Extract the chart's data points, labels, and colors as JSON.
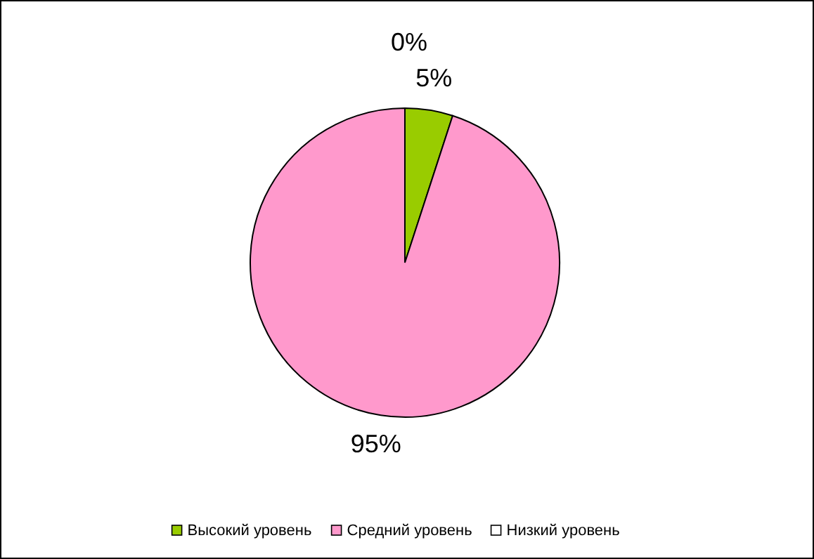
{
  "chart_data": {
    "type": "pie",
    "categories": [
      "Высокий уровень",
      "Средний уровень",
      "Низкий уровень"
    ],
    "values": [
      5,
      95,
      0
    ],
    "colors": [
      "#99cc00",
      "#ff99cc",
      "#ffffff"
    ],
    "value_labels": [
      "5%",
      "95%",
      "0%"
    ],
    "legend": "bottom"
  }
}
